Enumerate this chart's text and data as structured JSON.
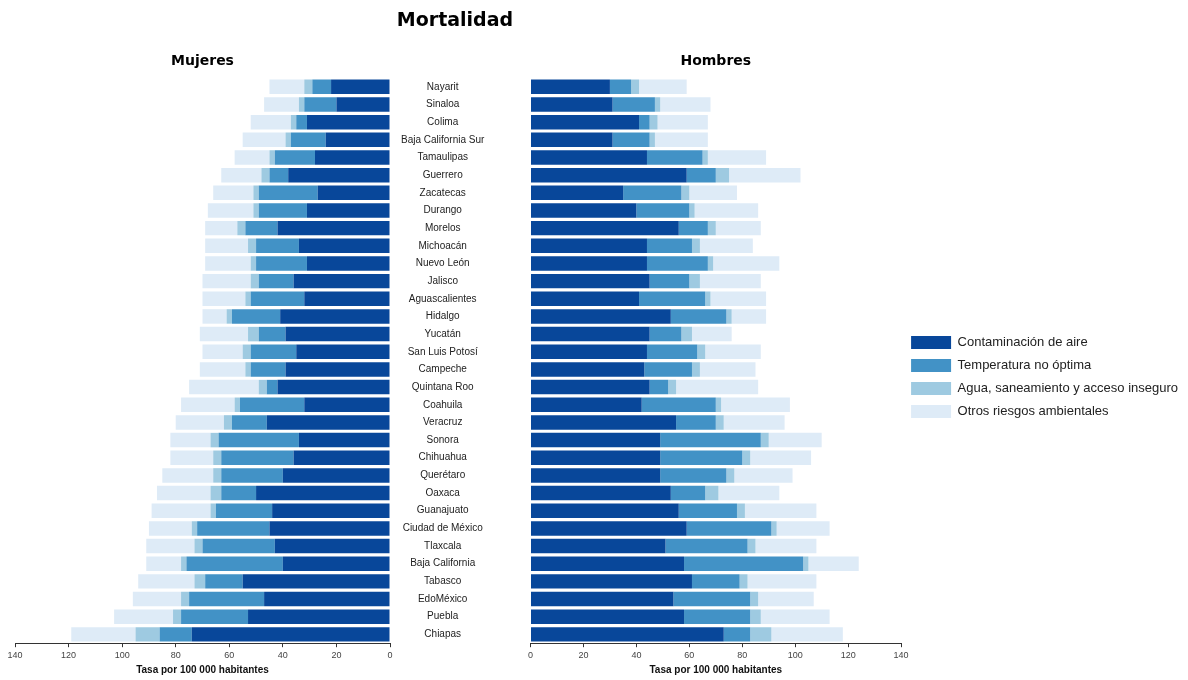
{
  "chart_data": [
    {
      "type": "bar",
      "title": "Mortalidad",
      "subtitle": "Mujeres",
      "xlabel": "Tasa por 100 000 habitantes",
      "orientation": "horizontal",
      "stacked": true,
      "grid": false,
      "legend": false,
      "xlim": [
        140,
        0
      ],
      "xticks": [
        0,
        20,
        40,
        60,
        80,
        100,
        120,
        140
      ],
      "categories": [
        "Nayarit",
        "Sinaloa",
        "Colima",
        "Baja California Sur",
        "Tamaulipas",
        "Guerrero",
        "Zacatecas",
        "Durango",
        "Morelos",
        "Michoacán",
        "Nuevo León",
        "Jalisco",
        "Aguascalientes",
        "Hidalgo",
        "Yucatán",
        "San Luis Potosí",
        "Campeche",
        "Quintana Roo",
        "Coahuila",
        "Veracruz",
        "Sonora",
        "Chihuahua",
        "Querétaro",
        "Oaxaca",
        "Guanajuato",
        "Ciudad de México",
        "Tlaxcala",
        "Baja California",
        "Tabasco",
        "EdoMéxico",
        "Puebla",
        "Chiapas"
      ],
      "series": [
        {
          "color": "#08479a",
          "values": [
            22,
            20,
            31,
            24,
            28,
            38,
            27,
            31,
            42,
            34,
            31,
            36,
            32,
            41,
            39,
            35,
            39,
            42,
            32,
            46,
            34,
            36,
            40,
            50,
            44,
            45,
            43,
            40,
            55,
            47,
            53,
            74
          ]
        },
        {
          "color": "#4292c6",
          "values": [
            7,
            12,
            4,
            13,
            15,
            7,
            22,
            18,
            12,
            16,
            19,
            13,
            20,
            18,
            10,
            17,
            13,
            4,
            24,
            13,
            30,
            27,
            23,
            13,
            21,
            27,
            27,
            36,
            14,
            28,
            25,
            12
          ]
        },
        {
          "color": "#9ecae1",
          "values": [
            3,
            2,
            2,
            2,
            2,
            3,
            2,
            2,
            3,
            3,
            2,
            3,
            2,
            2,
            4,
            3,
            2,
            3,
            2,
            3,
            3,
            3,
            3,
            4,
            2,
            2,
            3,
            2,
            4,
            3,
            3,
            9
          ]
        },
        {
          "color": "#deebf7",
          "values": [
            13,
            13,
            15,
            16,
            13,
            15,
            15,
            17,
            12,
            16,
            17,
            18,
            16,
            9,
            18,
            15,
            17,
            26,
            20,
            18,
            15,
            16,
            19,
            20,
            22,
            16,
            18,
            13,
            21,
            18,
            22,
            24
          ]
        }
      ]
    },
    {
      "type": "bar",
      "subtitle": "Hombres",
      "xlabel": "Tasa por 100 000 habitantes",
      "orientation": "horizontal",
      "stacked": true,
      "grid": false,
      "legend": "right",
      "tick_labels": "x",
      "xlim": [
        0,
        140
      ],
      "xticks": [
        0,
        20,
        40,
        60,
        80,
        100,
        120,
        140
      ],
      "categories": [
        null,
        null,
        null,
        null,
        null,
        null,
        null,
        null,
        null,
        null,
        null,
        null,
        null,
        null,
        null,
        null,
        null,
        null,
        null,
        null,
        null,
        null,
        null,
        null,
        null,
        null,
        null,
        null,
        null,
        null,
        null,
        null
      ],
      "series": [
        {
          "name": "Contaminación de aire",
          "color": "#08479a",
          "values": [
            30,
            31,
            41,
            31,
            44,
            59,
            35,
            40,
            56,
            44,
            44,
            45,
            41,
            53,
            45,
            44,
            43,
            45,
            42,
            55,
            49,
            49,
            49,
            53,
            56,
            59,
            51,
            58,
            61,
            54,
            58,
            73
          ]
        },
        {
          "name": "Temperatura no óptima",
          "color": "#4292c6",
          "values": [
            8,
            16,
            4,
            14,
            21,
            11,
            22,
            20,
            11,
            17,
            23,
            15,
            25,
            21,
            12,
            19,
            18,
            7,
            28,
            15,
            38,
            31,
            25,
            13,
            22,
            32,
            31,
            45,
            18,
            29,
            25,
            10
          ]
        },
        {
          "name": "Agua, saneamiento y acceso inseguro",
          "color": "#9ecae1",
          "values": [
            3,
            2,
            3,
            2,
            2,
            5,
            3,
            2,
            3,
            3,
            2,
            4,
            2,
            2,
            4,
            3,
            3,
            3,
            2,
            3,
            3,
            3,
            3,
            5,
            3,
            2,
            3,
            2,
            3,
            3,
            4,
            8
          ]
        },
        {
          "name": "Otros riesgos ambientales",
          "color": "#deebf7",
          "values": [
            18,
            19,
            19,
            20,
            22,
            27,
            18,
            24,
            17,
            20,
            25,
            23,
            21,
            13,
            15,
            21,
            21,
            31,
            26,
            23,
            20,
            23,
            22,
            23,
            27,
            20,
            23,
            19,
            26,
            21,
            26,
            27
          ]
        }
      ]
    }
  ]
}
